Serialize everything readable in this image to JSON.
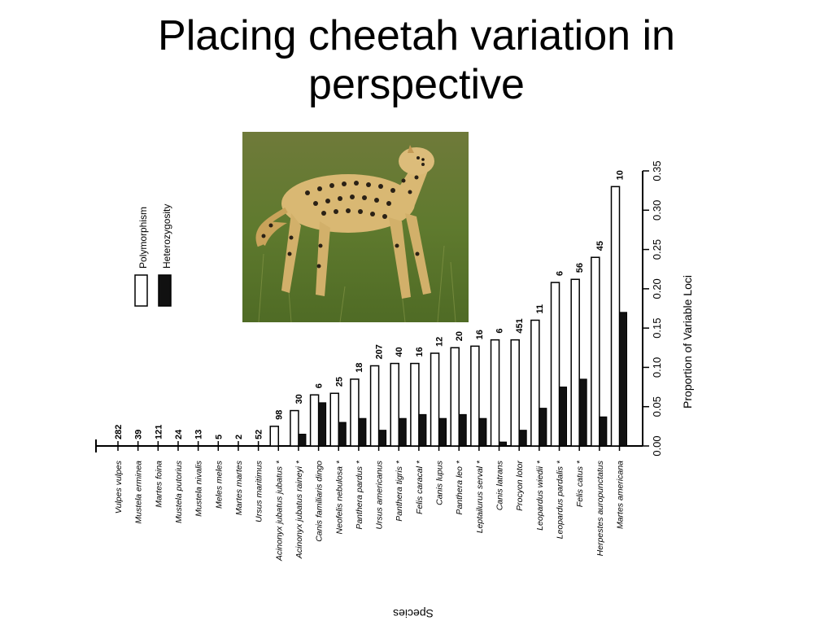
{
  "slide": {
    "title_line1": "Placing cheetah variation in",
    "title_line2": "perspective"
  },
  "chart_data": {
    "type": "bar",
    "title": "",
    "xlabel": "Species",
    "ylabel": "Proportion of Variable Loci",
    "ylim": [
      0,
      0.35
    ],
    "yticks": [
      "0.00",
      "0.05",
      "0.10",
      "0.15",
      "0.20",
      "0.25",
      "0.30",
      "0.35"
    ],
    "legend_placement": "top-left",
    "categories": [
      "Vulpes vulpes",
      "Mustela erminea",
      "Martes foina",
      "Mustela putorius",
      "Mustela nivalis",
      "Meles meles",
      "Martes martes",
      "Ursus maritimus",
      "Acinonyx jubatus jubatus *",
      "Acinonyx jubatus raineyi *",
      "Canis familiaris dingo",
      "Neofelis nebulosa *",
      "Panthera pardus *",
      "Ursus americanus",
      "Panthera tigris *",
      "Felis caracal *",
      "Canis lupus",
      "Panthera leo *",
      "Leptailurus serval *",
      "Canis latrans",
      "Procyon lotor",
      "Leopardus wiedii *",
      "Leopardus pardalis *",
      "Felis catus *",
      "Herpestes auropunctatus",
      "Martes americana"
    ],
    "sample_sizes": [
      "282",
      "39",
      "121",
      "24",
      "13",
      "5",
      "2",
      "52",
      "98",
      "30",
      "6",
      "25",
      "18",
      "207",
      "40",
      "16",
      "12",
      "20",
      "16",
      "6",
      "451",
      "11",
      "6",
      "56",
      "45",
      "10"
    ],
    "series": [
      {
        "name": "Polymorphism",
        "values": [
          0,
          0,
          0,
          0,
          0,
          0,
          0,
          0,
          0.025,
          0.045,
          0.065,
          0.067,
          0.085,
          0.102,
          0.105,
          0.105,
          0.118,
          0.125,
          0.127,
          0.135,
          0.135,
          0.16,
          0.208,
          0.212,
          0.24,
          0.33
        ]
      },
      {
        "name": "Heterozygosity",
        "values": [
          0,
          0,
          0,
          0,
          0,
          0,
          0,
          0,
          0,
          0.015,
          0.055,
          0.03,
          0.035,
          0.02,
          0.035,
          0.04,
          0.035,
          0.04,
          0.035,
          0.005,
          0.02,
          0.048,
          0.075,
          0.085,
          0.037,
          0.17
        ]
      }
    ]
  }
}
